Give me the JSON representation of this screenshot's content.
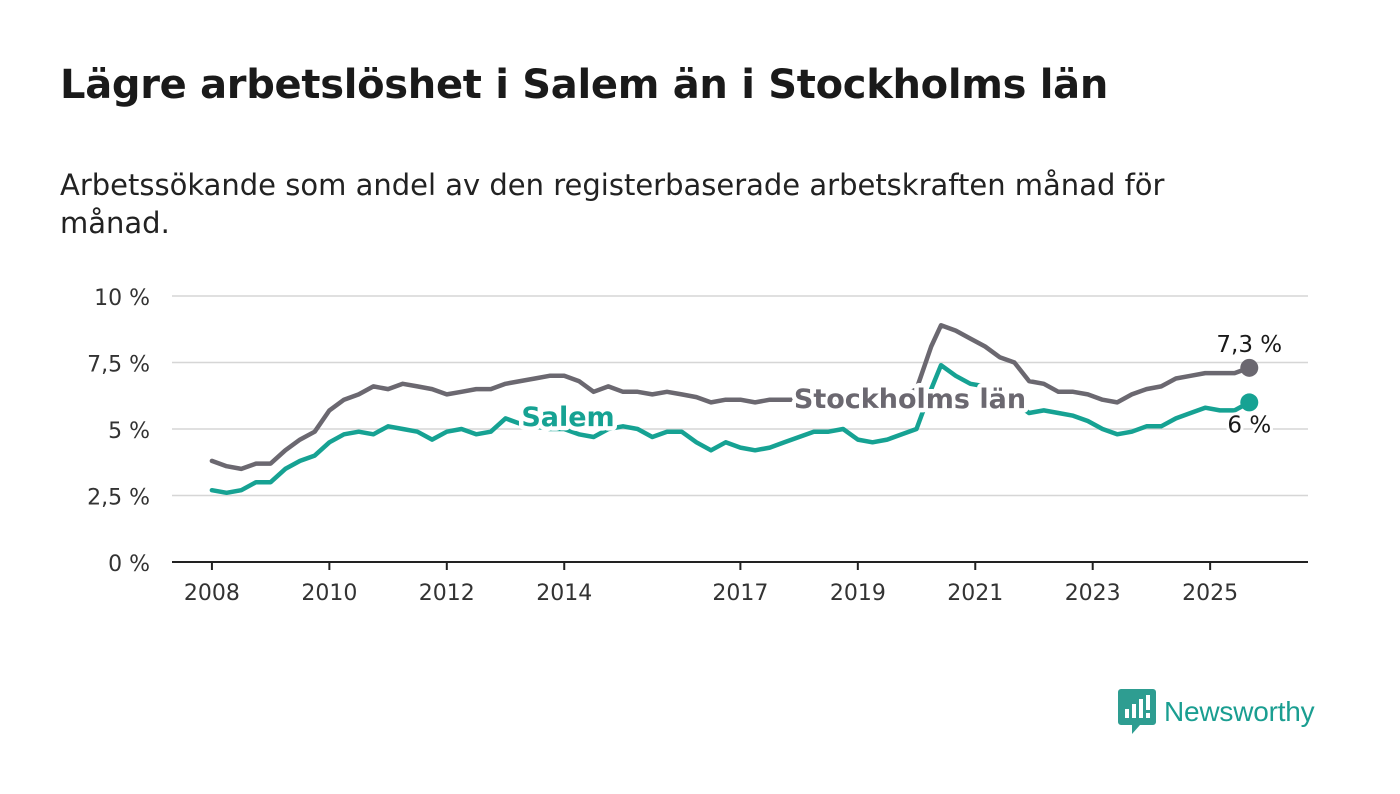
{
  "title": "Lägre arbetslöshet i Salem än i Stockholms län",
  "subtitle": "Arbetssökande som andel av den registerbaserade arbetskraften månad för månad.",
  "brand": {
    "name": "Newsworthy",
    "icon": "bar-chart-speech-bubble-icon",
    "color": "#2e9d91"
  },
  "chart_data": {
    "type": "line",
    "title": "",
    "xlabel": "",
    "ylabel": "",
    "ylim": [
      0,
      10
    ],
    "xlim": [
      "2007-03",
      "2026-09"
    ],
    "grid": true,
    "legend": "direct labels on lines",
    "y_ticks": [
      {
        "value": 0,
        "label": "0 %"
      },
      {
        "value": 2.5,
        "label": "2,5 %"
      },
      {
        "value": 5,
        "label": "5 %"
      },
      {
        "value": 7.5,
        "label": "7,5 %"
      },
      {
        "value": 10,
        "label": "10 %"
      }
    ],
    "x_ticks": [
      {
        "date": "2008-01",
        "label": "2008"
      },
      {
        "date": "2010-01",
        "label": "2010"
      },
      {
        "date": "2012-01",
        "label": "2012"
      },
      {
        "date": "2014-01",
        "label": "2014"
      },
      {
        "date": "2017-01",
        "label": "2017"
      },
      {
        "date": "2019-01",
        "label": "2019"
      },
      {
        "date": "2021-01",
        "label": "2021"
      },
      {
        "date": "2023-01",
        "label": "2023"
      },
      {
        "date": "2025-01",
        "label": "2025"
      }
    ],
    "series": [
      {
        "name": "Stockholms län",
        "color": "#6b6870",
        "points": [
          [
            "2008-01",
            3.8
          ],
          [
            "2008-04",
            3.6
          ],
          [
            "2008-07",
            3.5
          ],
          [
            "2008-10",
            3.7
          ],
          [
            "2009-01",
            3.7
          ],
          [
            "2009-04",
            4.2
          ],
          [
            "2009-07",
            4.6
          ],
          [
            "2009-10",
            4.9
          ],
          [
            "2010-01",
            5.7
          ],
          [
            "2010-04",
            6.1
          ],
          [
            "2010-07",
            6.3
          ],
          [
            "2010-10",
            6.6
          ],
          [
            "2011-01",
            6.5
          ],
          [
            "2011-04",
            6.7
          ],
          [
            "2011-07",
            6.6
          ],
          [
            "2011-10",
            6.5
          ],
          [
            "2012-01",
            6.3
          ],
          [
            "2012-04",
            6.4
          ],
          [
            "2012-07",
            6.5
          ],
          [
            "2012-10",
            6.5
          ],
          [
            "2013-01",
            6.7
          ],
          [
            "2013-04",
            6.8
          ],
          [
            "2013-07",
            6.9
          ],
          [
            "2013-10",
            7.0
          ],
          [
            "2014-01",
            7.0
          ],
          [
            "2014-04",
            6.8
          ],
          [
            "2014-07",
            6.4
          ],
          [
            "2014-10",
            6.6
          ],
          [
            "2015-01",
            6.4
          ],
          [
            "2015-04",
            6.4
          ],
          [
            "2015-07",
            6.3
          ],
          [
            "2015-10",
            6.4
          ],
          [
            "2016-01",
            6.3
          ],
          [
            "2016-04",
            6.2
          ],
          [
            "2016-07",
            6.0
          ],
          [
            "2016-10",
            6.1
          ],
          [
            "2017-01",
            6.1
          ],
          [
            "2017-04",
            6.0
          ],
          [
            "2017-07",
            6.1
          ],
          [
            "2017-10",
            6.1
          ],
          [
            "2018-01",
            6.1
          ],
          [
            "2018-04",
            6.0
          ],
          [
            "2018-07",
            6.0
          ],
          [
            "2018-10",
            6.0
          ],
          [
            "2019-01",
            5.9
          ],
          [
            "2019-04",
            5.9
          ],
          [
            "2019-07",
            5.9
          ],
          [
            "2019-10",
            6.2
          ],
          [
            "2020-01",
            6.5
          ],
          [
            "2020-04",
            8.1
          ],
          [
            "2020-06",
            8.9
          ],
          [
            "2020-09",
            8.7
          ],
          [
            "2020-12",
            8.4
          ],
          [
            "2021-03",
            8.1
          ],
          [
            "2021-06",
            7.7
          ],
          [
            "2021-09",
            7.5
          ],
          [
            "2021-12",
            6.8
          ],
          [
            "2022-03",
            6.7
          ],
          [
            "2022-06",
            6.4
          ],
          [
            "2022-09",
            6.4
          ],
          [
            "2022-12",
            6.3
          ],
          [
            "2023-03",
            6.1
          ],
          [
            "2023-06",
            6.0
          ],
          [
            "2023-09",
            6.3
          ],
          [
            "2023-12",
            6.5
          ],
          [
            "2024-03",
            6.6
          ],
          [
            "2024-06",
            6.9
          ],
          [
            "2024-09",
            7.0
          ],
          [
            "2024-12",
            7.1
          ],
          [
            "2025-03",
            7.1
          ],
          [
            "2025-06",
            7.1
          ],
          [
            "2025-09",
            7.3
          ]
        ],
        "end_label": "7,3 %",
        "line_label": "Stockholms län"
      },
      {
        "name": "Salem",
        "color": "#16a293",
        "points": [
          [
            "2008-01",
            2.7
          ],
          [
            "2008-04",
            2.6
          ],
          [
            "2008-07",
            2.7
          ],
          [
            "2008-10",
            3.0
          ],
          [
            "2009-01",
            3.0
          ],
          [
            "2009-04",
            3.5
          ],
          [
            "2009-07",
            3.8
          ],
          [
            "2009-10",
            4.0
          ],
          [
            "2010-01",
            4.5
          ],
          [
            "2010-04",
            4.8
          ],
          [
            "2010-07",
            4.9
          ],
          [
            "2010-10",
            4.8
          ],
          [
            "2011-01",
            5.1
          ],
          [
            "2011-04",
            5.0
          ],
          [
            "2011-07",
            4.9
          ],
          [
            "2011-10",
            4.6
          ],
          [
            "2012-01",
            4.9
          ],
          [
            "2012-04",
            5.0
          ],
          [
            "2012-07",
            4.8
          ],
          [
            "2012-10",
            4.9
          ],
          [
            "2013-01",
            5.4
          ],
          [
            "2013-04",
            5.2
          ],
          [
            "2013-07",
            5.1
          ],
          [
            "2013-10",
            5.0
          ],
          [
            "2014-01",
            5.0
          ],
          [
            "2014-04",
            4.8
          ],
          [
            "2014-07",
            4.7
          ],
          [
            "2014-10",
            5.0
          ],
          [
            "2015-01",
            5.1
          ],
          [
            "2015-04",
            5.0
          ],
          [
            "2015-07",
            4.7
          ],
          [
            "2015-10",
            4.9
          ],
          [
            "2016-01",
            4.9
          ],
          [
            "2016-04",
            4.5
          ],
          [
            "2016-07",
            4.2
          ],
          [
            "2016-10",
            4.5
          ],
          [
            "2017-01",
            4.3
          ],
          [
            "2017-04",
            4.2
          ],
          [
            "2017-07",
            4.3
          ],
          [
            "2017-10",
            4.5
          ],
          [
            "2018-01",
            4.7
          ],
          [
            "2018-04",
            4.9
          ],
          [
            "2018-07",
            4.9
          ],
          [
            "2018-10",
            5.0
          ],
          [
            "2019-01",
            4.6
          ],
          [
            "2019-04",
            4.5
          ],
          [
            "2019-07",
            4.6
          ],
          [
            "2019-10",
            4.8
          ],
          [
            "2020-01",
            5.0
          ],
          [
            "2020-04",
            6.5
          ],
          [
            "2020-06",
            7.4
          ],
          [
            "2020-09",
            7.0
          ],
          [
            "2020-12",
            6.7
          ],
          [
            "2021-03",
            6.6
          ],
          [
            "2021-06",
            6.3
          ],
          [
            "2021-09",
            6.0
          ],
          [
            "2021-12",
            5.6
          ],
          [
            "2022-03",
            5.7
          ],
          [
            "2022-06",
            5.6
          ],
          [
            "2022-09",
            5.5
          ],
          [
            "2022-12",
            5.3
          ],
          [
            "2023-03",
            5.0
          ],
          [
            "2023-06",
            4.8
          ],
          [
            "2023-09",
            4.9
          ],
          [
            "2023-12",
            5.1
          ],
          [
            "2024-03",
            5.1
          ],
          [
            "2024-06",
            5.4
          ],
          [
            "2024-09",
            5.6
          ],
          [
            "2024-12",
            5.8
          ],
          [
            "2025-03",
            5.7
          ],
          [
            "2025-06",
            5.7
          ],
          [
            "2025-09",
            6.0
          ]
        ],
        "end_label": "6 %",
        "line_label": "Salem"
      }
    ]
  }
}
